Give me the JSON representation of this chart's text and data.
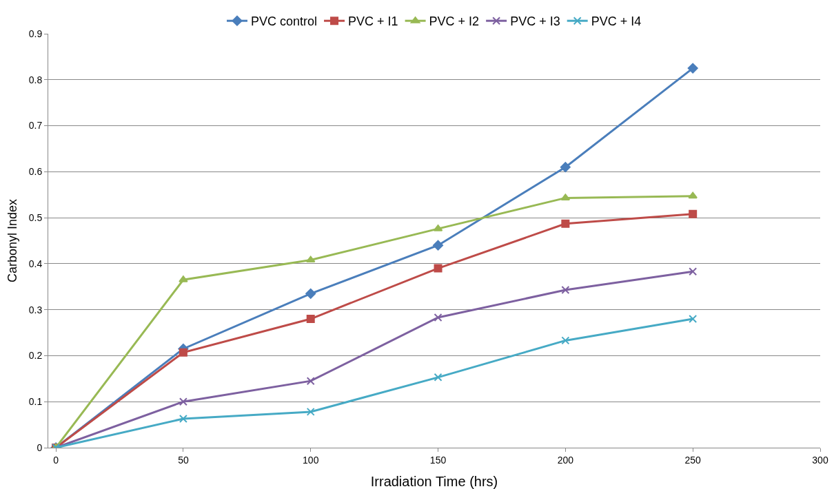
{
  "chart_data": {
    "type": "line",
    "xlabel": "Irradiation Time (hrs)",
    "ylabel": "Carbonyl Index",
    "x": [
      0,
      50,
      100,
      150,
      200,
      250
    ],
    "series": [
      {
        "name": "PVC control",
        "color": "#4a7ebb",
        "marker": "diamond",
        "values": [
          0,
          0.215,
          0.335,
          0.44,
          0.61,
          0.825
        ]
      },
      {
        "name": "PVC + I1",
        "color": "#be4b48",
        "marker": "square",
        "values": [
          0,
          0.207,
          0.28,
          0.39,
          0.487,
          0.508
        ]
      },
      {
        "name": "PVC + I2",
        "color": "#98b954",
        "marker": "triangle",
        "values": [
          0,
          0.365,
          0.408,
          0.476,
          0.543,
          0.547
        ]
      },
      {
        "name": "PVC + I3",
        "color": "#7d60a0",
        "marker": "cross",
        "values": [
          0,
          0.1,
          0.145,
          0.283,
          0.343,
          0.383
        ]
      },
      {
        "name": "PVC + I4",
        "color": "#46aac5",
        "marker": "cross",
        "values": [
          0,
          0.063,
          0.078,
          0.153,
          0.233,
          0.28
        ]
      }
    ],
    "xlim": [
      -3,
      300
    ],
    "xticks": [
      0,
      50,
      100,
      150,
      200,
      250,
      300
    ],
    "ylim": [
      0,
      0.9
    ],
    "yticks": [
      0,
      0.1,
      0.2,
      0.3,
      0.4,
      0.5,
      0.6,
      0.7,
      0.8,
      0.9
    ],
    "grid": "y",
    "legend": "top",
    "line_style": "solid"
  }
}
